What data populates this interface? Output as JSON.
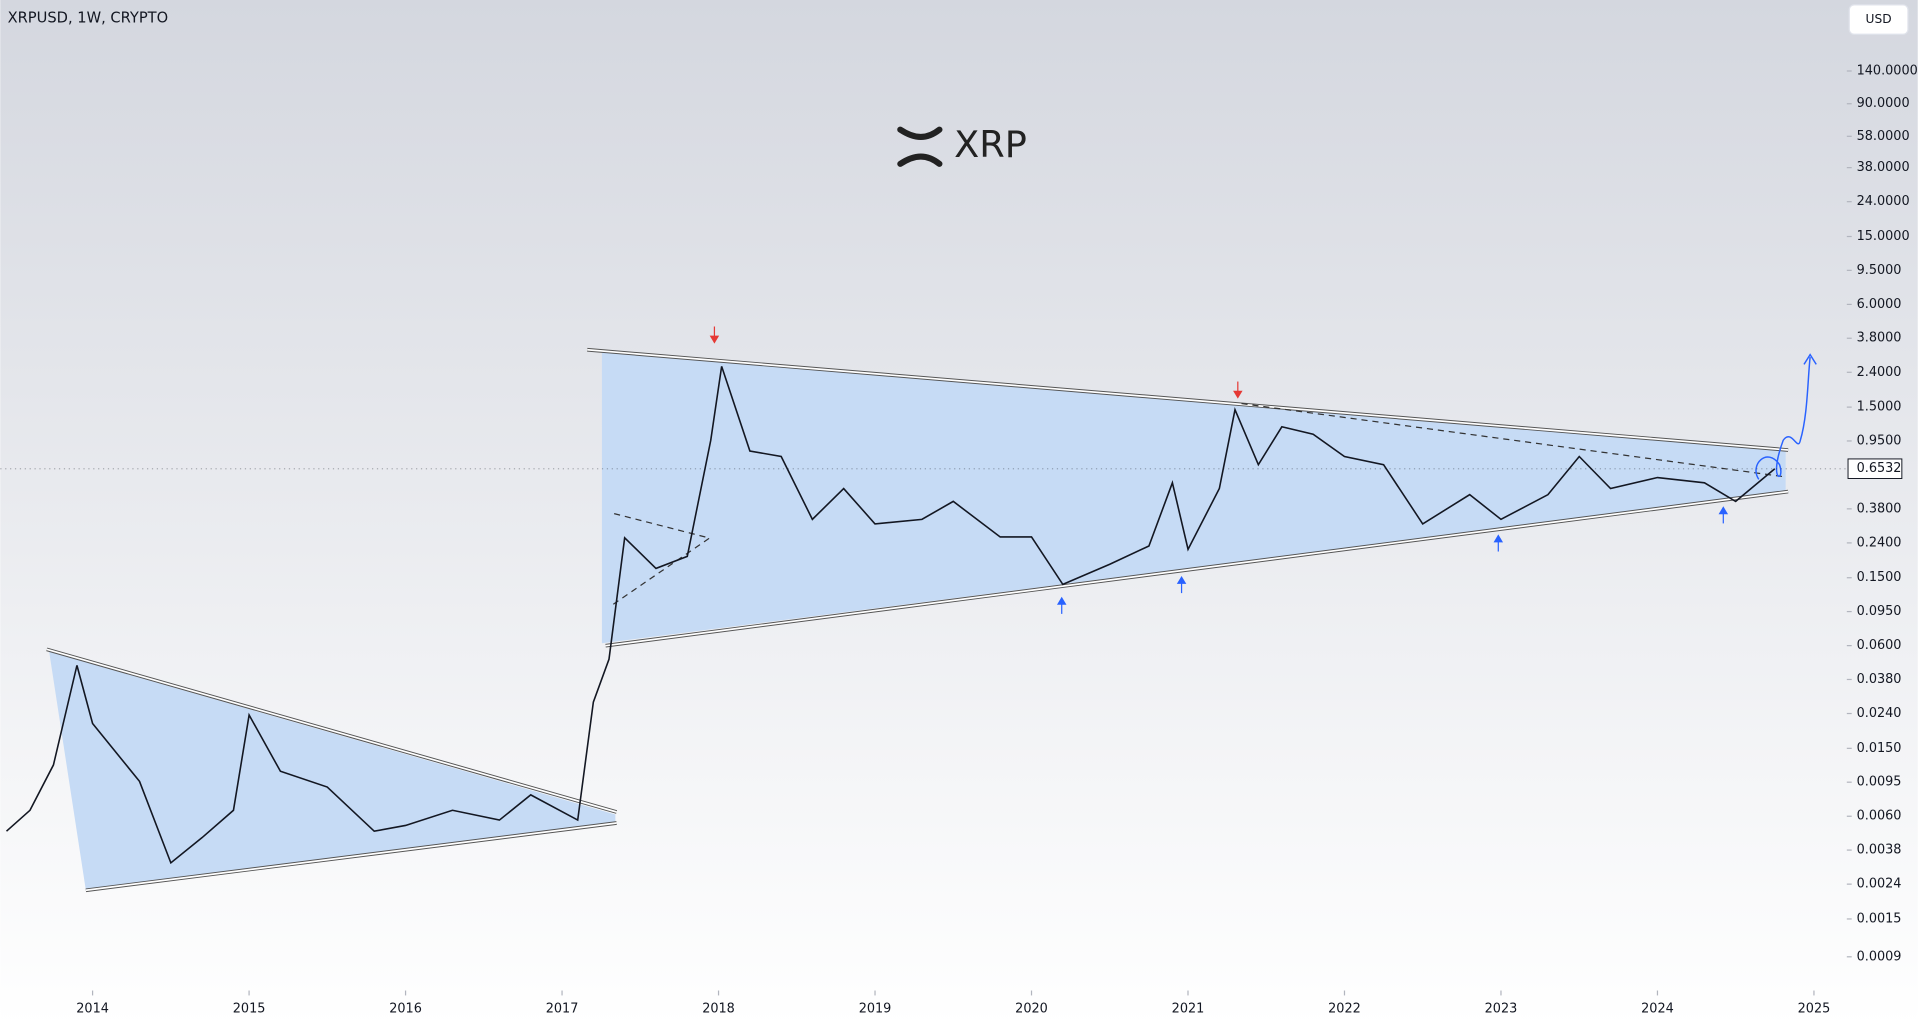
{
  "symbol": "XRPUSD, 1W, CRYPTO",
  "currency_button": "USD",
  "logo_text": "XRP",
  "chart_data": {
    "type": "line",
    "log_scale": true,
    "color": "#131722",
    "x": [
      2013.45,
      2013.6,
      2013.75,
      2013.9,
      2014.0,
      2014.3,
      2014.5,
      2014.7,
      2014.9,
      2015.0,
      2015.2,
      2015.5,
      2015.8,
      2016.0,
      2016.3,
      2016.6,
      2016.8,
      2017.1,
      2017.2,
      2017.3,
      2017.4,
      2017.6,
      2017.8,
      2017.95,
      2018.02,
      2018.2,
      2018.4,
      2018.6,
      2018.8,
      2019.0,
      2019.3,
      2019.5,
      2019.8,
      2020.0,
      2020.2,
      2020.5,
      2020.75,
      2020.9,
      2021.0,
      2021.2,
      2021.3,
      2021.45,
      2021.6,
      2021.8,
      2022.0,
      2022.25,
      2022.5,
      2022.8,
      2023.0,
      2023.3,
      2023.5,
      2023.7,
      2024.0,
      2024.3,
      2024.5,
      2024.75
    ],
    "values": [
      0.0049,
      0.0065,
      0.012,
      0.046,
      0.021,
      0.0096,
      0.0032,
      0.0045,
      0.0065,
      0.0235,
      0.011,
      0.0089,
      0.0049,
      0.0053,
      0.0065,
      0.0057,
      0.008,
      0.0057,
      0.028,
      0.05,
      0.257,
      0.17,
      0.2,
      0.96,
      2.6,
      0.83,
      0.77,
      0.33,
      0.5,
      0.31,
      0.33,
      0.42,
      0.26,
      0.26,
      0.137,
      0.18,
      0.23,
      0.54,
      0.22,
      0.5,
      1.45,
      0.69,
      1.15,
      1.04,
      0.77,
      0.69,
      0.31,
      0.46,
      0.33,
      0.46,
      0.77,
      0.5,
      0.58,
      0.54,
      0.42,
      0.6532
    ],
    "last_price": 0.6532,
    "xlim": [
      2013.41,
      2025.21
    ],
    "xticks": [
      2014,
      2015,
      2016,
      2017,
      2018,
      2019,
      2020,
      2021,
      2022,
      2023,
      2024,
      2025
    ],
    "ylim": [
      0.00062,
      365
    ],
    "yticks": [
      {
        "value": 140,
        "label": "140.0000"
      },
      {
        "value": 90,
        "label": "90.0000"
      },
      {
        "value": 58,
        "label": "58.0000"
      },
      {
        "value": 38,
        "label": "38.0000"
      },
      {
        "value": 24,
        "label": "24.0000"
      },
      {
        "value": 15,
        "label": "15.0000"
      },
      {
        "value": 9.5,
        "label": "9.5000"
      },
      {
        "value": 6,
        "label": "6.0000"
      },
      {
        "value": 3.8,
        "label": "3.8000"
      },
      {
        "value": 2.4,
        "label": "2.4000"
      },
      {
        "value": 1.5,
        "label": "1.5000"
      },
      {
        "value": 0.95,
        "label": "0.9500"
      },
      {
        "value": 0.38,
        "label": "0.3800"
      },
      {
        "value": 0.24,
        "label": "0.2400"
      },
      {
        "value": 0.15,
        "label": "0.1500"
      },
      {
        "value": 0.095,
        "label": "0.0950"
      },
      {
        "value": 0.06,
        "label": "0.0600"
      },
      {
        "value": 0.038,
        "label": "0.0380"
      },
      {
        "value": 0.024,
        "label": "0.0240"
      },
      {
        "value": 0.015,
        "label": "0.0150"
      },
      {
        "value": 0.0095,
        "label": "0.0095"
      },
      {
        "value": 0.006,
        "label": "0.0060"
      },
      {
        "value": 0.0038,
        "label": "0.0038"
      },
      {
        "value": 0.0024,
        "label": "0.0024"
      },
      {
        "value": 0.0015,
        "label": "0.0015"
      },
      {
        "value": 0.0009,
        "label": "0.0009"
      }
    ],
    "grid": false
  }
}
